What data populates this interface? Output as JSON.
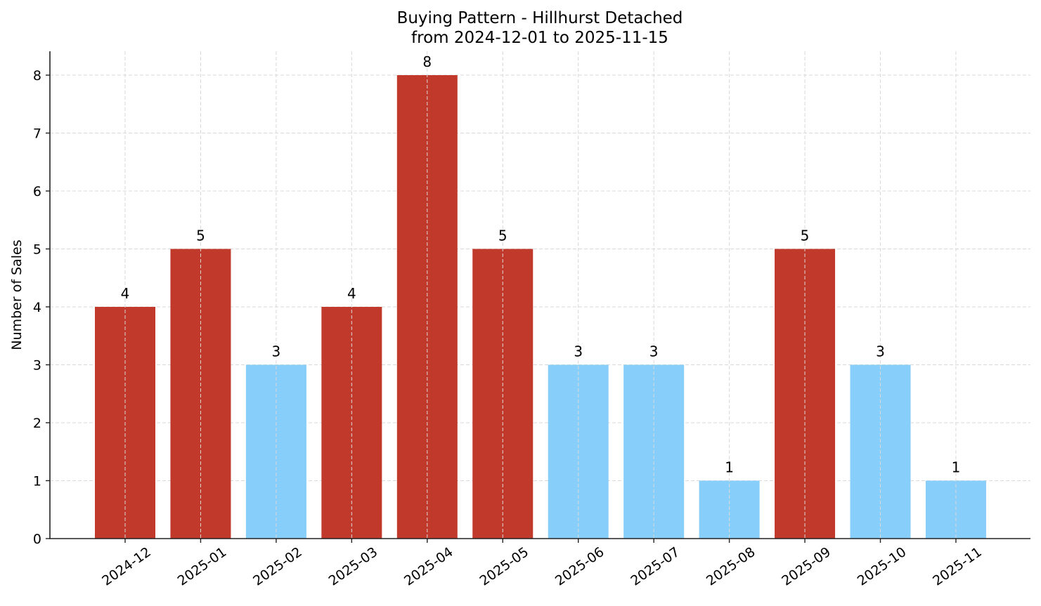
{
  "chart_data": {
    "type": "bar",
    "title": "Buying Pattern - Hillhurst Detached",
    "subtitle": "from 2024-12-01 to 2025-11-15",
    "xlabel": "",
    "ylabel": "Number of Sales",
    "categories": [
      "2024-12",
      "2025-01",
      "2025-02",
      "2025-03",
      "2025-04",
      "2025-05",
      "2025-06",
      "2025-07",
      "2025-08",
      "2025-09",
      "2025-10",
      "2025-11"
    ],
    "values": [
      4,
      5,
      3,
      4,
      8,
      5,
      3,
      3,
      1,
      5,
      3,
      1
    ],
    "bar_colors": [
      "#c0392b",
      "#c0392b",
      "#87cefa",
      "#c0392b",
      "#c0392b",
      "#c0392b",
      "#87cefa",
      "#87cefa",
      "#87cefa",
      "#c0392b",
      "#87cefa",
      "#87cefa"
    ],
    "data_labels": [
      "4",
      "5",
      "3",
      "4",
      "8",
      "5",
      "3",
      "3",
      "1",
      "5",
      "3",
      "1"
    ],
    "yticks": [
      0,
      1,
      2,
      3,
      4,
      5,
      6,
      7,
      8
    ],
    "ylim": [
      0,
      8.4
    ],
    "grid": true,
    "legend": null
  },
  "colors": {
    "high": "#c0392b",
    "low": "#87cefa",
    "grid": "#d9d9d9",
    "axis": "#222222"
  }
}
